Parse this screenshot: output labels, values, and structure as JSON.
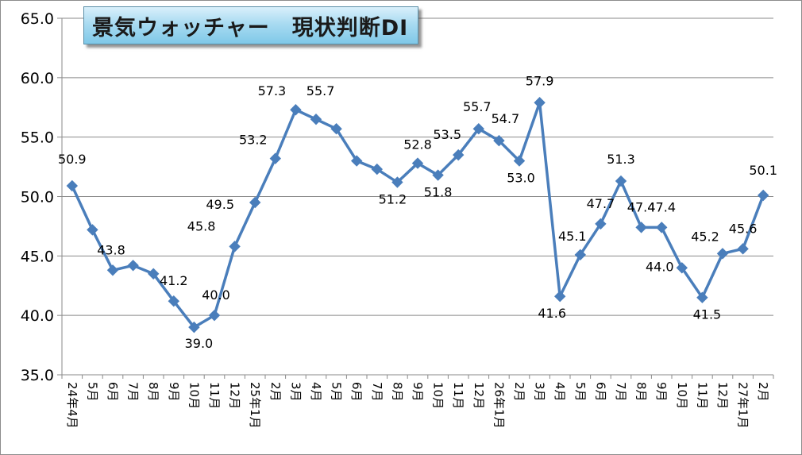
{
  "chart_data": {
    "type": "line",
    "title": "景気ウォッチャー　現状判断DI",
    "ylim": [
      35.0,
      65.0
    ],
    "yticks": [
      "35.0",
      "40.0",
      "45.0",
      "50.0",
      "55.0",
      "60.0",
      "65.0"
    ],
    "grid": true,
    "legend": "none",
    "line_color": "#4a7ebb",
    "categories": [
      "24年4月",
      "5月",
      "6月",
      "7月",
      "8月",
      "9月",
      "10月",
      "11月",
      "12月",
      "25年1月",
      "2月",
      "3月",
      "4月",
      "5月",
      "6月",
      "7月",
      "8月",
      "9月",
      "10月",
      "11月",
      "12月",
      "26年1月",
      "2月",
      "3月",
      "4月",
      "5月",
      "6月",
      "7月",
      "8月",
      "9月",
      "10月",
      "11月",
      "12月",
      "27年1月",
      "2月"
    ],
    "values": [
      50.9,
      47.2,
      43.8,
      44.2,
      43.5,
      41.2,
      39.0,
      40.0,
      45.8,
      49.5,
      53.2,
      57.3,
      56.5,
      55.7,
      53.0,
      52.3,
      51.2,
      52.8,
      51.8,
      53.5,
      55.7,
      54.7,
      53.0,
      57.9,
      41.6,
      45.1,
      47.7,
      51.3,
      47.4,
      47.4,
      44.0,
      41.5,
      45.2,
      45.6,
      50.1
    ],
    "data_labels": [
      {
        "i": 0,
        "text": "50.9"
      },
      {
        "i": 2,
        "text": "43.8"
      },
      {
        "i": 5,
        "text": "41.2"
      },
      {
        "i": 6,
        "text": "39.0"
      },
      {
        "i": 7,
        "text": "40.0"
      },
      {
        "i": 8,
        "text": "45.8"
      },
      {
        "i": 9,
        "text": "49.5"
      },
      {
        "i": 10,
        "text": "53.2"
      },
      {
        "i": 11,
        "text": "57.3"
      },
      {
        "i": 13,
        "text": "55.7"
      },
      {
        "i": 16,
        "text": "51.2"
      },
      {
        "i": 17,
        "text": "52.8"
      },
      {
        "i": 18,
        "text": "51.8"
      },
      {
        "i": 19,
        "text": "53.5"
      },
      {
        "i": 20,
        "text": "55.7"
      },
      {
        "i": 21,
        "text": "54.7"
      },
      {
        "i": 22,
        "text": "53.0"
      },
      {
        "i": 23,
        "text": "57.9"
      },
      {
        "i": 24,
        "text": "41.6"
      },
      {
        "i": 25,
        "text": "45.1"
      },
      {
        "i": 26,
        "text": "47.7"
      },
      {
        "i": 27,
        "text": "51.3"
      },
      {
        "i": 28,
        "text": "47.4"
      },
      {
        "i": 29,
        "text": "47.4"
      },
      {
        "i": 30,
        "text": "44.0"
      },
      {
        "i": 31,
        "text": "41.5"
      },
      {
        "i": 32,
        "text": "45.2"
      },
      {
        "i": 33,
        "text": "45.6"
      },
      {
        "i": 34,
        "text": "50.1"
      }
    ]
  }
}
